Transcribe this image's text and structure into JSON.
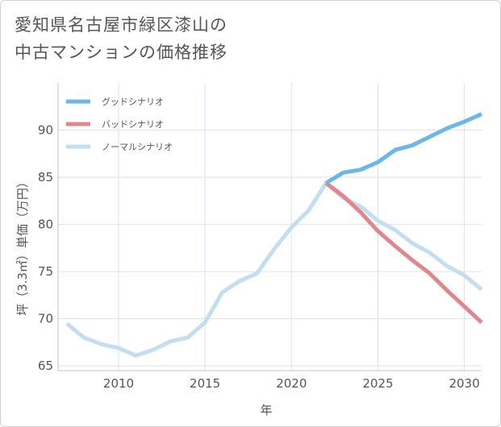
{
  "title_lines": [
    "愛知県名古屋市緑区漆山の",
    "中古マンションの価格推移"
  ],
  "chart_data": {
    "type": "line",
    "xlabel": "年",
    "ylabel": "坪（3.3㎡）単価（万円）",
    "xlim": [
      2006.5,
      2031
    ],
    "ylim": [
      64.5,
      95
    ],
    "x_ticks": [
      2010,
      2015,
      2020,
      2025,
      2030
    ],
    "y_ticks": [
      65,
      70,
      75,
      80,
      85,
      90
    ],
    "grid": true,
    "legend_position": "top-left",
    "series": [
      {
        "name": "グッドシナリオ",
        "color": "#6cb6ea",
        "x": [
          2022,
          2023,
          2024,
          2025,
          2026,
          2027,
          2028,
          2029,
          2030,
          2031
        ],
        "y": [
          84.4,
          85.5,
          85.8,
          86.6,
          87.9,
          88.4,
          89.3,
          90.2,
          90.9,
          91.7
        ]
      },
      {
        "name": "バッドシナリオ",
        "color": "#e0878e",
        "x": [
          2022,
          2023,
          2024,
          2025,
          2026,
          2027,
          2028,
          2029,
          2030,
          2031
        ],
        "y": [
          84.4,
          83.0,
          81.3,
          79.3,
          77.7,
          76.2,
          74.8,
          73.0,
          71.3,
          69.6
        ]
      },
      {
        "name": "ノーマルシナリオ",
        "color": "#c3def0",
        "x": [
          2007,
          2008,
          2009,
          2010,
          2011,
          2012,
          2013,
          2014,
          2015,
          2016,
          2017,
          2018,
          2019,
          2020,
          2021,
          2022,
          2023,
          2024,
          2025,
          2026,
          2027,
          2028,
          2029,
          2030,
          2031
        ],
        "y": [
          69.5,
          68.0,
          67.3,
          66.9,
          66.1,
          66.7,
          67.6,
          68.0,
          69.6,
          72.8,
          74.0,
          74.8,
          77.4,
          79.7,
          81.5,
          84.4,
          82.8,
          81.9,
          80.4,
          79.4,
          78.0,
          77.0,
          75.6,
          74.6,
          73.1
        ]
      }
    ]
  }
}
